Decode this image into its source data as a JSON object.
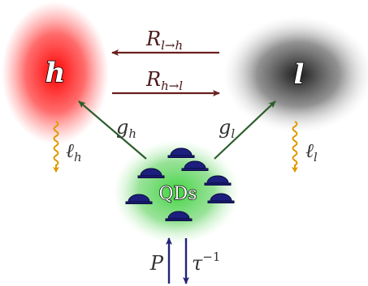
{
  "nodes": {
    "h": {
      "label": "h",
      "color": "#ff2d2d"
    },
    "l": {
      "label": "l",
      "color": "#2b2b2b"
    },
    "qds": {
      "label": "QDs",
      "color": "#34c234",
      "dot_color": "#1c1f7d"
    }
  },
  "transitions": {
    "l_to_h": {
      "R": "R",
      "sub": "l→h"
    },
    "h_to_l": {
      "R": "R",
      "sub": "h→l"
    },
    "color": "#6b1f1f"
  },
  "gains": {
    "g_h": {
      "g": "g",
      "sub": "h"
    },
    "g_l": {
      "g": "g",
      "sub": "l"
    },
    "color": "#2c5e2c"
  },
  "losses": {
    "ell_h": {
      "ell": "ℓ",
      "sub": "h"
    },
    "ell_l": {
      "ell": "ℓ",
      "sub": "l"
    },
    "wavy_color": "#e09a00"
  },
  "pump": {
    "P": "P",
    "tau": "τ",
    "tau_exp": "−1",
    "color": "#23237a"
  }
}
